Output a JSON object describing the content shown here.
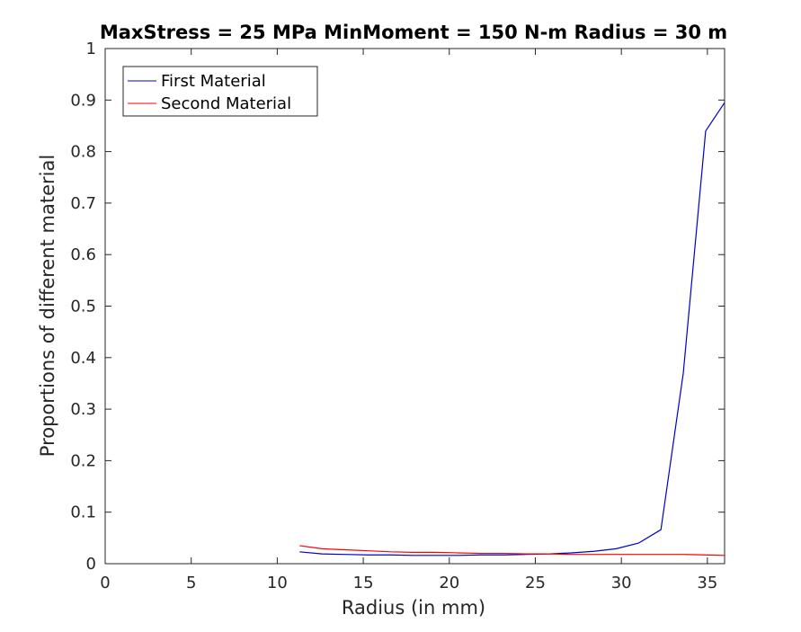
{
  "chart_data": {
    "type": "line",
    "title": "MaxStress = 25 MPa MinMoment = 150 N-m Radius = 30 m",
    "xlabel": "Radius (in mm)",
    "ylabel": "Proportions of different material",
    "xlim": [
      0,
      36
    ],
    "ylim": [
      0,
      1
    ],
    "xticks": [
      "0",
      "5",
      "10",
      "15",
      "20",
      "25",
      "30",
      "35"
    ],
    "yticks": [
      "0",
      "0.1",
      "0.2",
      "0.3",
      "0.4",
      "0.5",
      "0.6",
      "0.7",
      "0.8",
      "0.9",
      "1"
    ],
    "grid": false,
    "legend_position": "top-left",
    "series": [
      {
        "name": "First Material",
        "color": "#0000cc",
        "x": [
          11.3,
          12.6,
          13.9,
          15.3,
          16.6,
          17.9,
          19.2,
          20.5,
          21.8,
          23.2,
          24.5,
          25.8,
          27.1,
          28.4,
          29.7,
          31.0,
          32.3,
          33.6,
          34.9,
          36.0
        ],
        "y": [
          0.023,
          0.019,
          0.018,
          0.017,
          0.017,
          0.016,
          0.016,
          0.016,
          0.017,
          0.017,
          0.018,
          0.019,
          0.021,
          0.024,
          0.029,
          0.04,
          0.066,
          0.37,
          0.84,
          0.895
        ]
      },
      {
        "name": "Second Material",
        "color": "#ff0000",
        "x": [
          11.3,
          12.6,
          13.9,
          15.3,
          16.6,
          17.9,
          19.2,
          20.5,
          21.8,
          23.2,
          24.5,
          25.8,
          27.1,
          28.4,
          29.7,
          31.0,
          32.3,
          33.6,
          34.9,
          36.0
        ],
        "y": [
          0.035,
          0.029,
          0.027,
          0.025,
          0.023,
          0.022,
          0.022,
          0.021,
          0.02,
          0.02,
          0.019,
          0.019,
          0.018,
          0.018,
          0.018,
          0.018,
          0.018,
          0.018,
          0.017,
          0.016
        ]
      }
    ]
  }
}
